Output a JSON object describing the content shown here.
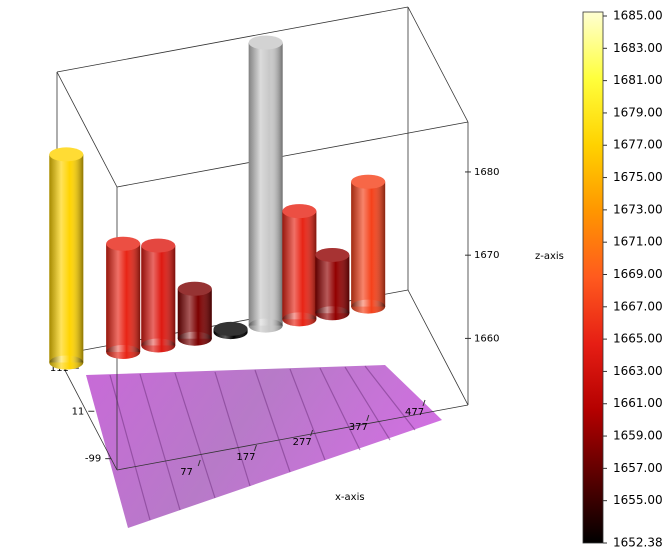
{
  "chart_data": {
    "type": "bar3d",
    "x_label": "x-axis",
    "z_label": "z-axis",
    "x": [
      -16,
      65,
      115,
      167,
      218,
      268,
      316,
      363,
      414
    ],
    "y": [
      111,
      111,
      111,
      111,
      111,
      111,
      111,
      111,
      111
    ],
    "values": [
      1677,
      1665,
      1664,
      1658,
      1652.38,
      1686,
      1665,
      1659,
      1667
    ],
    "xlim": [
      -23,
      477
    ],
    "ylim": [
      -130,
      130
    ],
    "zlim": [
      1652,
      1686
    ],
    "xticks": [
      77,
      177,
      277,
      377,
      477
    ],
    "yticks": [
      111,
      11,
      -99
    ],
    "zticks": [
      1660,
      1670,
      1680
    ],
    "colormap": [
      "#000000",
      "#5a0000",
      "#b40000",
      "#e61e14",
      "#ff5a1e",
      "#ff9600",
      "#ffd200",
      "#ffff3c",
      "#ffffd2"
    ],
    "over_color": "#c8c8c8",
    "colorbar_lim": [
      1652.38,
      1685
    ],
    "colorbar_ticks": [
      {
        "value": 1652.38,
        "label": "1652.38"
      },
      {
        "value": 1655,
        "label": "1655.00"
      },
      {
        "value": 1657,
        "label": "1657.00"
      },
      {
        "value": 1659,
        "label": "1659.00"
      },
      {
        "value": 1661,
        "label": "1661.00"
      },
      {
        "value": 1663,
        "label": "1663.00"
      },
      {
        "value": 1665,
        "label": "1665.00"
      },
      {
        "value": 1667,
        "label": "1667.00"
      },
      {
        "value": 1669,
        "label": "1669.00"
      },
      {
        "value": 1671,
        "label": "1671.00"
      },
      {
        "value": 1673,
        "label": "1673.00"
      },
      {
        "value": 1675,
        "label": "1675.00"
      },
      {
        "value": 1677,
        "label": "1677.00"
      },
      {
        "value": 1679,
        "label": "1679.00"
      },
      {
        "value": 1681,
        "label": "1681.00"
      },
      {
        "value": 1683,
        "label": "1683.00"
      },
      {
        "value": 1685,
        "label": "1685.00"
      }
    ]
  }
}
